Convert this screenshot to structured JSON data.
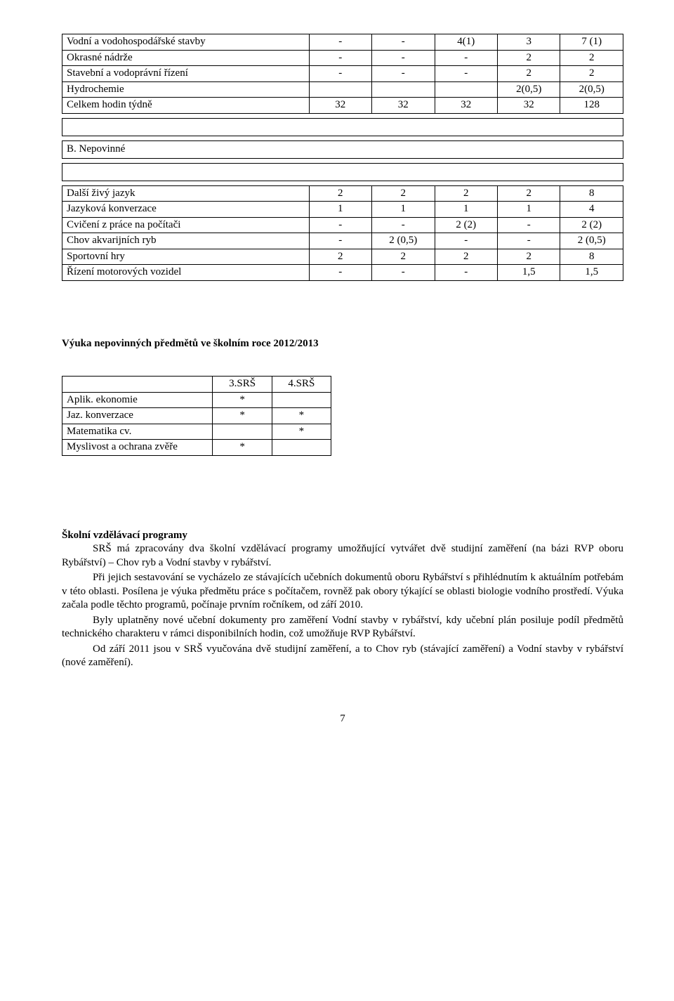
{
  "table_a": {
    "rows": [
      {
        "label": "Vodní a vodohospodářské stavby",
        "c": [
          "-",
          "-",
          "4(1)",
          "3",
          "7 (1)"
        ]
      },
      {
        "label": "Okrasné nádrže",
        "c": [
          "-",
          "-",
          "-",
          "2",
          "2"
        ]
      },
      {
        "label": "Stavební a vodoprávní řízení",
        "c": [
          "-",
          "-",
          "-",
          "2",
          "2"
        ]
      },
      {
        "label": "Hydrochemie",
        "c": [
          "",
          "",
          "",
          "2(0,5)",
          "2(0,5)"
        ]
      },
      {
        "label": "Celkem hodin týdně",
        "c": [
          "32",
          "32",
          "32",
          "32",
          "128"
        ]
      }
    ]
  },
  "section_b_label": "B. Nepovinné",
  "table_b": {
    "rows": [
      {
        "label": "Další živý jazyk",
        "c": [
          "2",
          "2",
          "2",
          "2",
          "8"
        ]
      },
      {
        "label": "Jazyková konverzace",
        "c": [
          "1",
          "1",
          "1",
          "1",
          "4"
        ]
      },
      {
        "label": "Cvičení z práce na počítači",
        "c": [
          "-",
          "-",
          "2 (2)",
          "-",
          "2 (2)"
        ]
      },
      {
        "label": "Chov akvarijních ryb",
        "c": [
          "-",
          "2 (0,5)",
          "-",
          "-",
          "2 (0,5)"
        ]
      },
      {
        "label": "Sportovní hry",
        "c": [
          "2",
          "2",
          "2",
          "2",
          "8"
        ]
      },
      {
        "label": "Řízení motorových vozidel",
        "c": [
          "-",
          "-",
          "-",
          "1,5",
          "1,5"
        ]
      }
    ]
  },
  "subjects_heading": "Výuka nepovinných předmětů ve školním roce 2012/2013",
  "subjects_table": {
    "headers": [
      "",
      "3.SRŠ",
      "4.SRŠ"
    ],
    "rows": [
      {
        "label": "Aplik. ekonomie",
        "c": [
          "*",
          ""
        ]
      },
      {
        "label": "Jaz. konverzace",
        "c": [
          "*",
          "*"
        ]
      },
      {
        "label": "Matematika cv.",
        "c": [
          "",
          "*"
        ]
      },
      {
        "label": "Myslivost a ochrana zvěře",
        "c": [
          "*",
          ""
        ]
      }
    ]
  },
  "programs": {
    "heading": "Školní vzdělávací programy",
    "p1": "SRŠ má zpracovány dva školní vzdělávací programy umožňující vytvářet dvě studijní zaměření (na bázi RVP oboru Rybářství) – Chov ryb a Vodní stavby v rybářství.",
    "p2": "Při jejich sestavování se vycházelo ze stávajících učebních dokumentů oboru Rybářství s přihlédnutím k aktuálním potřebám v této oblasti. Posílena je výuka předmětu práce s počítačem, rovněž pak obory týkající se oblasti biologie vodního prostředí. Výuka začala podle těchto programů, počínaje prvním ročníkem, od září 2010.",
    "p3": "Byly uplatněny nové učební dokumenty pro zaměření Vodní stavby v rybářství, kdy učební plán posiluje podíl předmětů technického charakteru v rámci disponibilních hodin, což umožňuje RVP Rybářství.",
    "p4": "Od září 2011 jsou v SRŠ vyučována dvě studijní zaměření, a to Chov ryb (stávající zaměření) a Vodní stavby v rybářství (nové zaměření)."
  },
  "page_number": "7"
}
